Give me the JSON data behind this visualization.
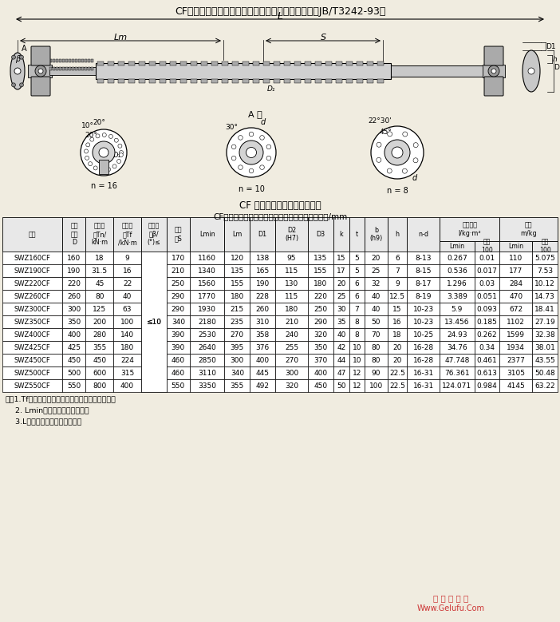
{
  "title": "CF型長伸縮法蘭式萬向聯軸機基本參數和主要尺寸（JB/T3242-93）",
  "table_title": "CF型長伸縮法蘭式萬向聯軸器基本參數和主要尺寸/mm",
  "background_color": "#f0ece0",
  "rows": [
    [
      "SWZ160CF",
      "160",
      "18",
      "9",
      "",
      "170",
      "1160",
      "120",
      "138",
      "95",
      "135",
      "15",
      "5",
      "20",
      "6",
      "8-13",
      "0.267",
      "0.01",
      "110",
      "5.075"
    ],
    [
      "SWZ190CF",
      "190",
      "31.5",
      "16",
      "",
      "210",
      "1340",
      "135",
      "165",
      "115",
      "155",
      "17",
      "5",
      "25",
      "7",
      "8-15",
      "0.536",
      "0.017",
      "177",
      "7.53"
    ],
    [
      "SWZ220CF",
      "220",
      "45",
      "22",
      "",
      "250",
      "1560",
      "155",
      "190",
      "130",
      "180",
      "20",
      "6",
      "32",
      "9",
      "8-17",
      "1.296",
      "0.03",
      "284",
      "10.12"
    ],
    [
      "SWZ260CF",
      "260",
      "80",
      "40",
      "",
      "290",
      "1770",
      "180",
      "228",
      "115",
      "220",
      "25",
      "6",
      "40",
      "12.5",
      "8-19",
      "3.389",
      "0.051",
      "470",
      "14.73"
    ],
    [
      "SWZ300CF",
      "300",
      "125",
      "63",
      "",
      "290",
      "1930",
      "215",
      "260",
      "180",
      "250",
      "30",
      "7",
      "40",
      "15",
      "10-23",
      "5.9",
      "0.093",
      "672",
      "18.41"
    ],
    [
      "SWZ350CF",
      "350",
      "200",
      "100",
      "≤10",
      "340",
      "2180",
      "235",
      "310",
      "210",
      "290",
      "35",
      "8",
      "50",
      "16",
      "10-23",
      "13.456",
      "0.185",
      "1102",
      "27.19"
    ],
    [
      "SWZ400CF",
      "400",
      "280",
      "140",
      "",
      "390",
      "2530",
      "270",
      "358",
      "240",
      "320",
      "40",
      "8",
      "70",
      "18",
      "10-25",
      "24.93",
      "0.262",
      "1599",
      "32.38"
    ],
    [
      "SWZ425CF",
      "425",
      "355",
      "180",
      "",
      "390",
      "2640",
      "395",
      "376",
      "255",
      "350",
      "42",
      "10",
      "80",
      "20",
      "16-28",
      "34.76",
      "0.34",
      "1934",
      "38.01"
    ],
    [
      "SWZ450CF",
      "450",
      "450",
      "224",
      "",
      "460",
      "2850",
      "300",
      "400",
      "270",
      "370",
      "44",
      "10",
      "80",
      "20",
      "16-28",
      "47.748",
      "0.461",
      "2377",
      "43.55"
    ],
    [
      "SWZ500CF",
      "500",
      "600",
      "315",
      "",
      "460",
      "3110",
      "340",
      "445",
      "300",
      "400",
      "47",
      "12",
      "90",
      "22.5",
      "16-31",
      "76.361",
      "0.613",
      "3105",
      "50.48"
    ],
    [
      "SWZ550CF",
      "550",
      "800",
      "400",
      "",
      "550",
      "3350",
      "355",
      "492",
      "320",
      "450",
      "50",
      "12",
      "100",
      "22.5",
      "16-31",
      "124.071",
      "0.984",
      "4145",
      "63.22"
    ]
  ],
  "notes": [
    "注：1.Tf為在交變負荷下按疲勞強度所允許的轉矩。",
    "    2. Lmin為縮短后的最小長度。",
    "    3.L為安裝長度，按需要確定。"
  ],
  "watermark1": "格 魯 夫 機 械",
  "watermark2": "Www.Gelufu.Com"
}
